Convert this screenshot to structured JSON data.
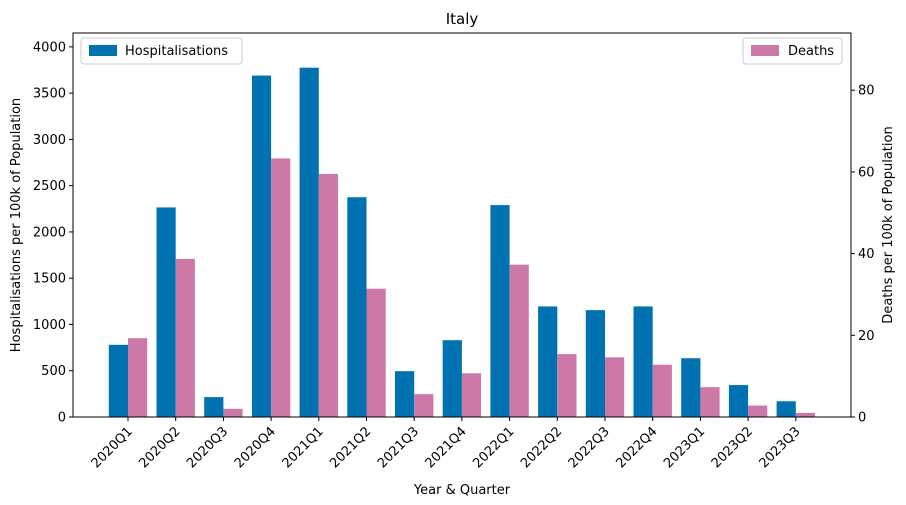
{
  "chart_data": {
    "type": "bar",
    "title": "Italy",
    "xlabel": "Year & Quarter",
    "categories": [
      "2020Q1",
      "2020Q2",
      "2020Q3",
      "2020Q4",
      "2021Q1",
      "2021Q2",
      "2021Q3",
      "2021Q4",
      "2022Q1",
      "2022Q2",
      "2022Q3",
      "2022Q4",
      "2023Q1",
      "2023Q2",
      "2023Q3"
    ],
    "left_axis": {
      "label": "Hospitalisations per 100k of Population",
      "color": "#0072b2",
      "ylim": [
        0,
        4150
      ],
      "ticks": [
        0,
        500,
        1000,
        1500,
        2000,
        2500,
        3000,
        3500,
        4000
      ]
    },
    "right_axis": {
      "label": "Deaths per 100k of Population",
      "color": "#cc79a7",
      "ylim": [
        0,
        94
      ],
      "ticks": [
        0,
        20,
        40,
        60,
        80
      ]
    },
    "series": [
      {
        "name": "Hospitalisations",
        "axis": "left",
        "color": "#0072b2",
        "values": [
          780,
          2265,
          215,
          3690,
          3775,
          2375,
          495,
          830,
          2290,
          1195,
          1155,
          1195,
          635,
          345,
          170
        ]
      },
      {
        "name": "Deaths",
        "axis": "right",
        "color": "#cc79a7",
        "values": [
          19.3,
          38.7,
          2.0,
          63.3,
          59.5,
          31.4,
          5.6,
          10.7,
          37.3,
          15.4,
          14.6,
          12.8,
          7.3,
          2.8,
          1.0
        ]
      }
    ],
    "legends": [
      {
        "series": 0,
        "placement": "upper-left"
      },
      {
        "series": 1,
        "placement": "upper-right"
      }
    ],
    "grid": false
  }
}
